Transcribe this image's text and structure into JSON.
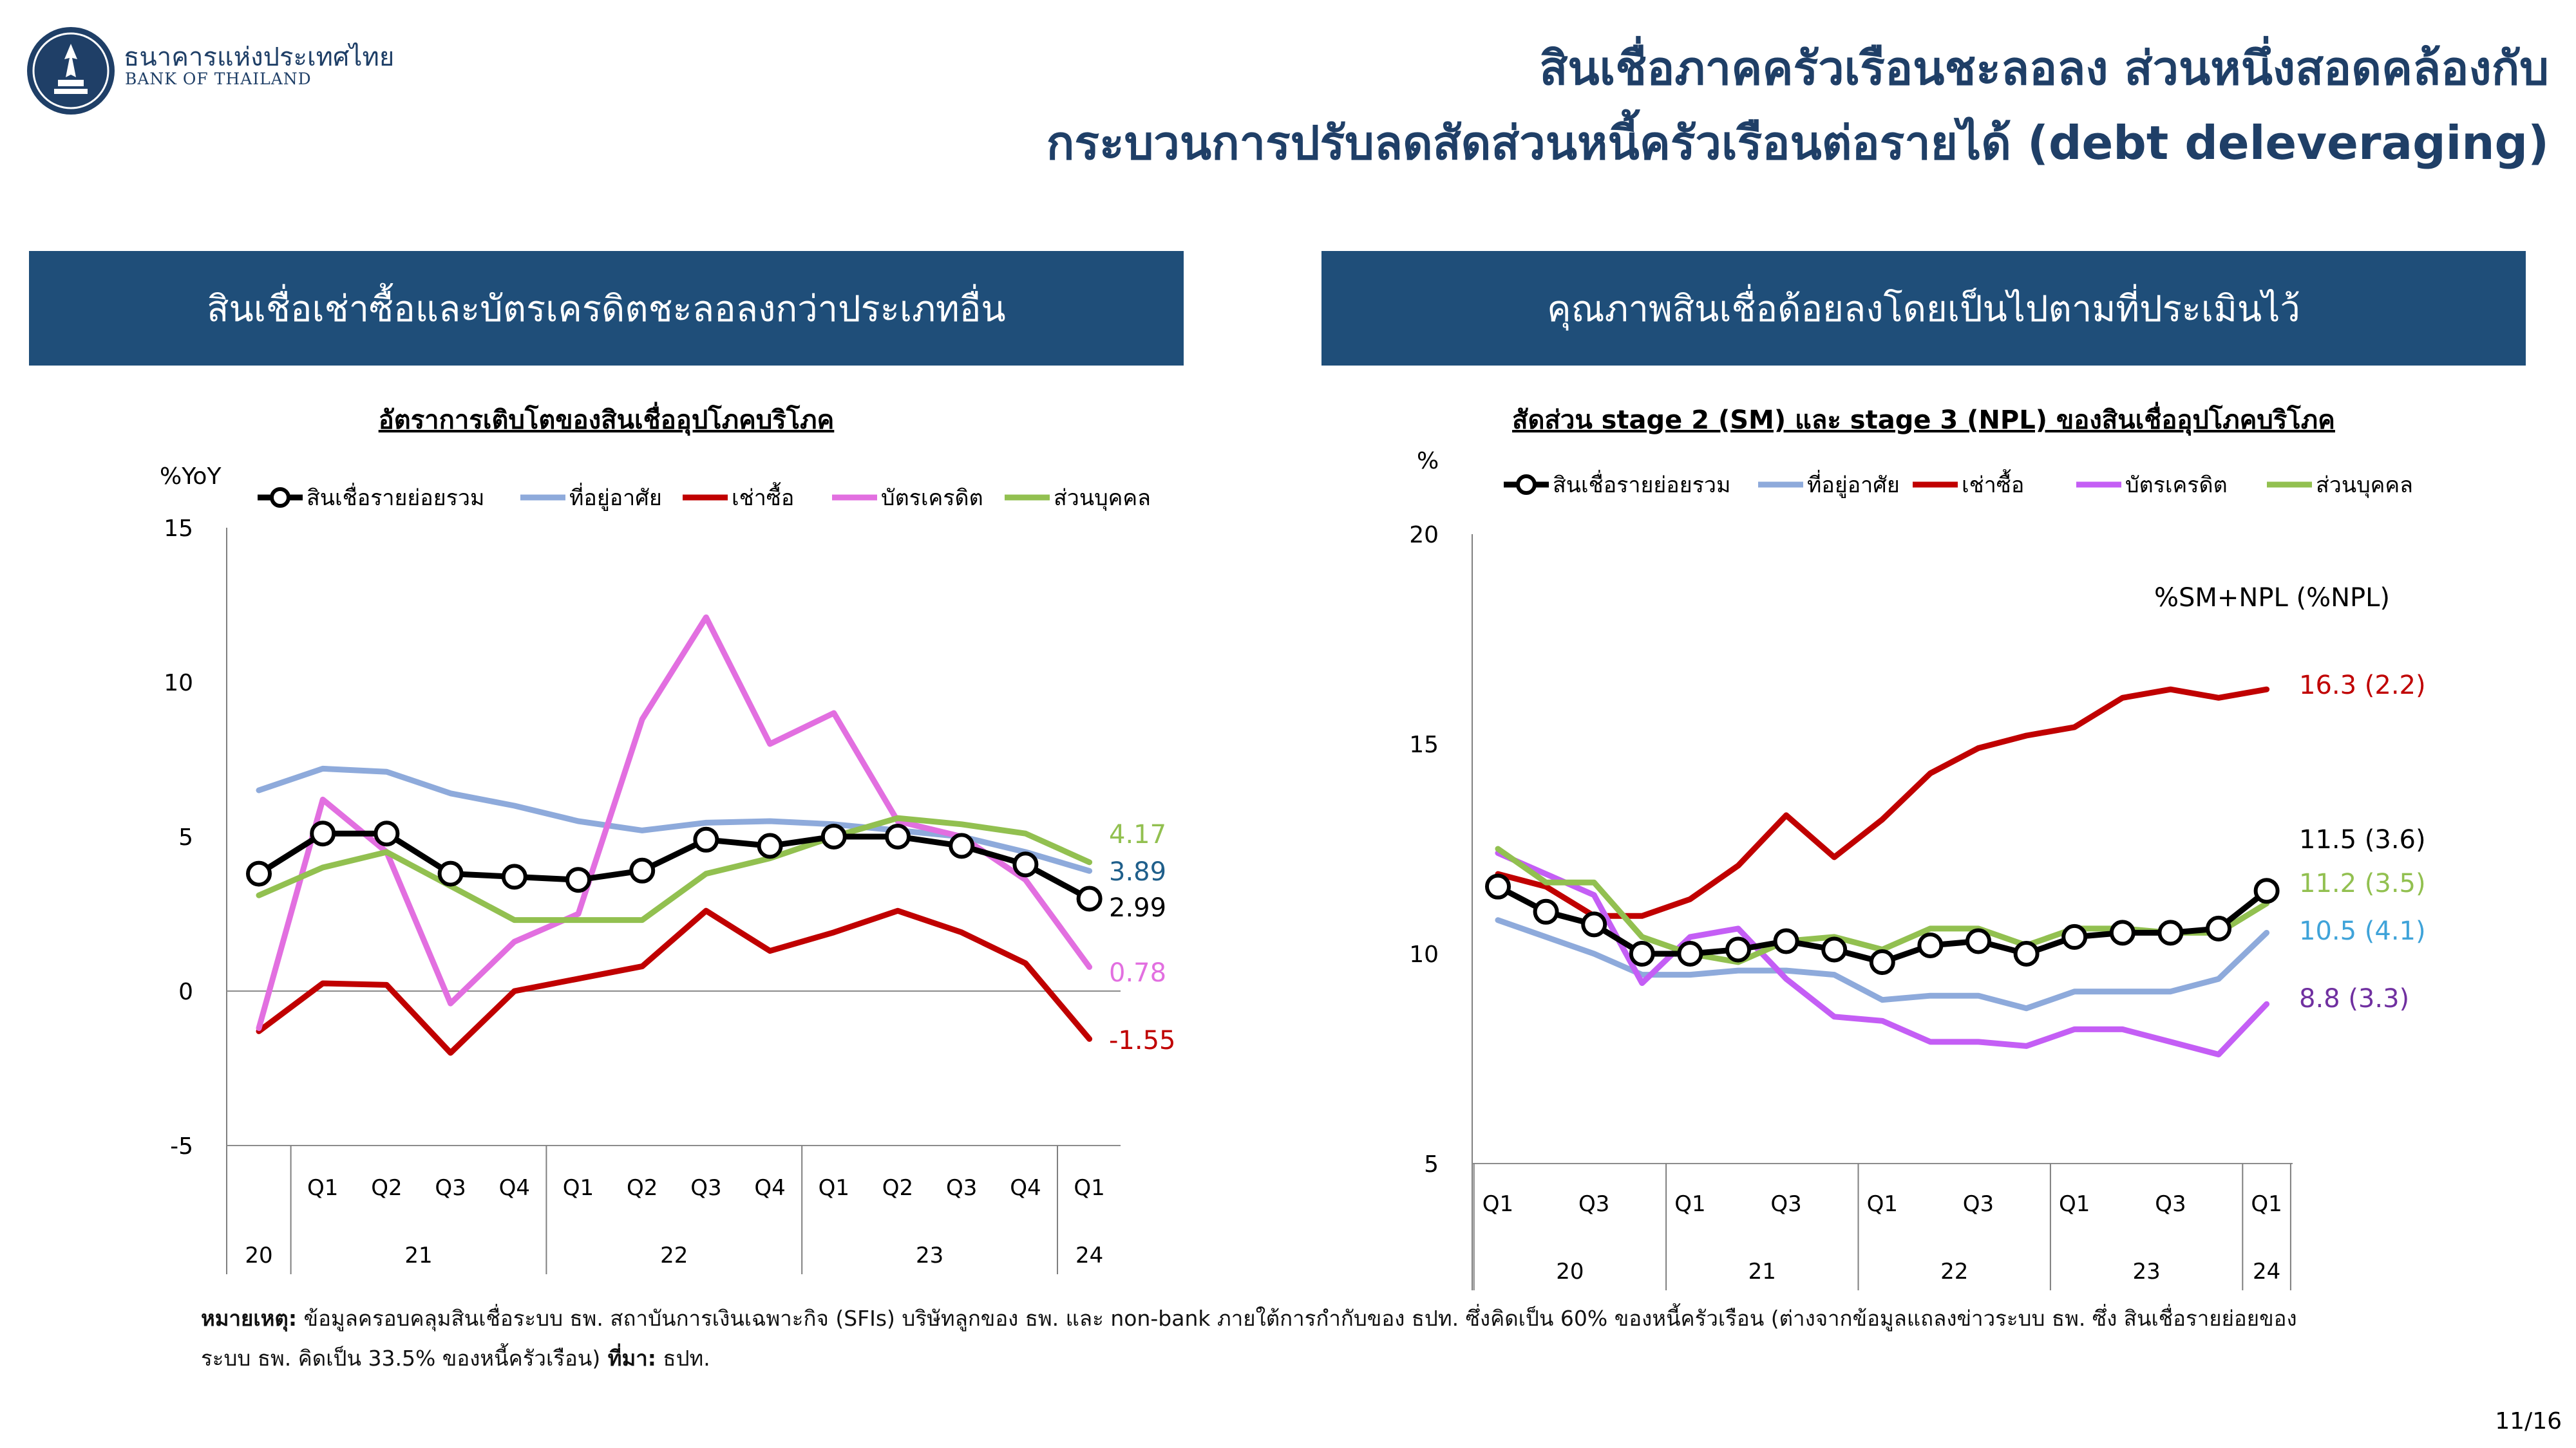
{
  "header": {
    "bank_name_th": "ธนาคารแห่งประเทศไทย",
    "bank_name_en": "BANK OF THAILAND",
    "title_line1": "สินเชื่อภาคครัวเรือนชะลอลง ส่วนหนึ่งสอดคล้องกับ",
    "title_line2": "กระบวนการปรับลดสัดส่วนหนี้ครัวเรือนต่อรายได้ (debt deleveraging)"
  },
  "left_panel": {
    "heading": "สินเชื่อเช่าซื้อและบัตรเครดิตชะลอลงกว่าประเภทอื่น",
    "subtitle": "อัตราการเติบโตของสินเชื่ออุปโภคบริโภค"
  },
  "right_panel": {
    "heading": "คุณภาพสินเชื่อด้อยลงโดยเป็นไปตามที่ประเมินไว้",
    "subtitle": "สัดส่วน stage 2 (SM) และ stage 3 (NPL) ของสินเชื่ออุปโภคบริโภค"
  },
  "colors": {
    "total": "#000000",
    "housing": "#8eaadb",
    "hire_purchase": "#c00000",
    "credit_card_left": "#e26fe0",
    "credit_card_right": "#c45ef5",
    "personal": "#92c050",
    "label_housing": "#1f5f8b",
    "label_housing_right": "#3fa3d9",
    "label_card_right": "#7030a0",
    "header_bg": "#1f4e79",
    "title": "#1f3f67"
  },
  "chart_data": [
    {
      "type": "line",
      "title": "อัตราการเติบโตของสินเชื่ออุปโภคบริโภค",
      "ylabel": "%YoY",
      "ylim": [
        -5,
        15
      ],
      "yticks": [
        -5,
        0,
        5,
        10,
        15
      ],
      "categories": [
        "Q4-20",
        "Q1-21",
        "Q2-21",
        "Q3-21",
        "Q4-21",
        "Q1-22",
        "Q2-22",
        "Q3-22",
        "Q4-22",
        "Q1-23",
        "Q2-23",
        "Q3-23",
        "Q4-23",
        "Q1-24"
      ],
      "quarter_labels": [
        "Q1",
        "Q2",
        "Q3",
        "Q4",
        "Q1",
        "Q2",
        "Q3",
        "Q4",
        "Q1",
        "Q2",
        "Q3",
        "Q4",
        "Q1"
      ],
      "year_labels": [
        "20",
        "21",
        "22",
        "23",
        "24"
      ],
      "series": [
        {
          "key": "housing",
          "name": "ที่อยู่อาศัย",
          "values": [
            6.5,
            7.2,
            7.1,
            6.4,
            6.0,
            5.5,
            5.2,
            5.45,
            5.5,
            5.4,
            5.2,
            5.0,
            4.5,
            3.89
          ],
          "end_label": "3.89"
        },
        {
          "key": "hire_purchase",
          "name": "เช่าซื้อ",
          "values": [
            -1.3,
            0.25,
            0.2,
            -2.0,
            0.0,
            0.4,
            0.8,
            2.6,
            1.3,
            1.9,
            2.6,
            1.9,
            0.9,
            -1.55
          ],
          "end_label": "-1.55"
        },
        {
          "key": "credit_card_left",
          "name": "บัตรเครดิต",
          "values": [
            -1.2,
            6.2,
            4.5,
            -0.4,
            1.6,
            2.5,
            8.8,
            12.1,
            8.0,
            9.0,
            5.5,
            5.0,
            3.6,
            0.78
          ],
          "end_label": "0.78"
        },
        {
          "key": "personal",
          "name": "ส่วนบุคคล",
          "values": [
            3.1,
            4.0,
            4.5,
            3.4,
            2.3,
            2.3,
            2.3,
            3.8,
            4.3,
            5.0,
            5.6,
            5.4,
            5.1,
            4.17
          ],
          "end_label": "4.17"
        },
        {
          "key": "total",
          "name": "สินเชื่อรายย่อยรวม",
          "values": [
            3.8,
            5.1,
            5.1,
            3.8,
            3.7,
            3.6,
            3.9,
            4.9,
            4.7,
            5.0,
            5.0,
            4.7,
            4.1,
            2.99
          ],
          "end_label": "2.99"
        }
      ]
    },
    {
      "type": "line",
      "title": "สัดส่วน stage 2 (SM) และ stage 3 (NPL) ของสินเชื่ออุปโภคบริโภค",
      "ylabel": "%",
      "annotation": "%SM+NPL (%NPL)",
      "ylim": [
        5,
        20
      ],
      "yticks": [
        5,
        10,
        15,
        20
      ],
      "categories": [
        "Q1-20",
        "Q2-20",
        "Q3-20",
        "Q4-20",
        "Q1-21",
        "Q2-21",
        "Q3-21",
        "Q4-21",
        "Q1-22",
        "Q2-22",
        "Q3-22",
        "Q4-22",
        "Q1-23",
        "Q2-23",
        "Q3-23",
        "Q4-23",
        "Q1-24"
      ],
      "quarter_labels": [
        "Q1",
        "Q3",
        "Q1",
        "Q3",
        "Q1",
        "Q3",
        "Q1",
        "Q3",
        "Q1"
      ],
      "year_labels": [
        "20",
        "21",
        "22",
        "23",
        "24"
      ],
      "series": [
        {
          "key": "housing",
          "name": "ที่อยู่อาศัย",
          "values": [
            10.8,
            10.4,
            10.0,
            9.5,
            9.5,
            9.6,
            9.6,
            9.5,
            8.9,
            9.0,
            9.0,
            8.7,
            9.1,
            9.1,
            9.1,
            9.4,
            10.5
          ],
          "end_label": "10.5 (4.1)"
        },
        {
          "key": "hire_purchase",
          "name": "เช่าซื้อ",
          "values": [
            11.9,
            11.6,
            10.9,
            10.9,
            11.3,
            12.1,
            13.3,
            12.3,
            13.2,
            14.3,
            14.9,
            15.2,
            15.4,
            16.1,
            16.3,
            16.1,
            16.3
          ],
          "end_label": "16.3 (2.2)"
        },
        {
          "key": "credit_card_right",
          "name": "บัตรเครดิต",
          "values": [
            12.4,
            11.9,
            11.4,
            9.3,
            10.4,
            10.6,
            9.4,
            8.5,
            8.4,
            7.9,
            7.9,
            7.8,
            8.2,
            8.2,
            7.9,
            7.6,
            8.8
          ],
          "end_label": "8.8 (3.3)"
        },
        {
          "key": "personal",
          "name": "ส่วนบุคคล",
          "values": [
            12.5,
            11.7,
            11.7,
            10.4,
            10.0,
            9.8,
            10.3,
            10.4,
            10.1,
            10.6,
            10.6,
            10.2,
            10.6,
            10.6,
            10.5,
            10.5,
            11.2
          ],
          "end_label": "11.2 (3.5)"
        },
        {
          "key": "total",
          "name": "สินเชื่อรายย่อยรวม",
          "values": [
            11.6,
            11.0,
            10.7,
            10.0,
            10.0,
            10.1,
            10.3,
            10.1,
            9.8,
            10.2,
            10.3,
            10.0,
            10.4,
            10.5,
            10.5,
            10.6,
            11.5
          ],
          "end_label": "11.5 (3.6)"
        }
      ]
    }
  ],
  "note": {
    "label": "หมายเหตุ:",
    "text": " ข้อมูลครอบคลุมสินเชื่อระบบ ธพ. สถาบันการเงินเฉพาะกิจ (SFIs) บริษัทลูกของ ธพ. และ non-bank ภายใต้การกำกับของ ธปท. ซึ่งคิดเป็น 60% ของหนี้ครัวเรือน (ต่างจากข้อมูลแถลงข่าวระบบ ธพ. ซึ่ง สินเชื่อรายย่อยของระบบ ธพ. คิดเป็น 33.5% ของหนี้ครัวเรือน)",
    "source_label": " ที่มา:",
    "source": " ธปท."
  },
  "page_number": "11/16"
}
